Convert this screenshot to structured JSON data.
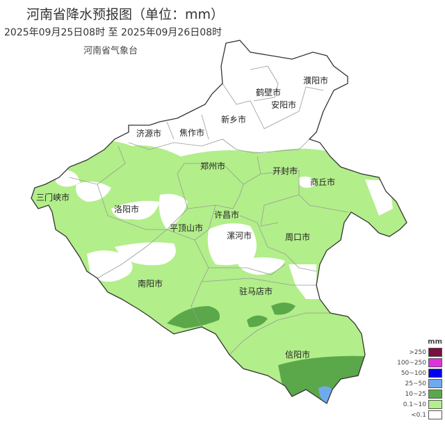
{
  "title": "河南省降水预报图（单位：mm）",
  "period": "2025年09月25日08时  至  2025年09月26日08时",
  "issuer": "河南省气象台",
  "cities": [
    {
      "name": "濮阳市"
    },
    {
      "name": "鹤壁市"
    },
    {
      "name": "安阳市"
    },
    {
      "name": "新乡市"
    },
    {
      "name": "济源市"
    },
    {
      "name": "焦作市"
    },
    {
      "name": "郑州市"
    },
    {
      "name": "开封市"
    },
    {
      "name": "商丘市"
    },
    {
      "name": "三门峡市"
    },
    {
      "name": "洛阳市"
    },
    {
      "name": "许昌市"
    },
    {
      "name": "平顶山市"
    },
    {
      "name": "漯河市"
    },
    {
      "name": "周口市"
    },
    {
      "name": "南阳市"
    },
    {
      "name": "驻马店市"
    },
    {
      "name": "信阳市"
    }
  ],
  "legend": {
    "unit": "mm",
    "items": [
      {
        "label": ">250",
        "color": "#7a1040"
      },
      {
        "label": "100~250",
        "color": "#e030e0"
      },
      {
        "label": "50~100",
        "color": "#0000f0"
      },
      {
        "label": "25~50",
        "color": "#70aaee"
      },
      {
        "label": "10~25",
        "color": "#5aa84a"
      },
      {
        "label": "0.1~10",
        "color": "#b2ee8a"
      },
      {
        "label": "<0.1",
        "color": "#ffffff"
      }
    ]
  }
}
